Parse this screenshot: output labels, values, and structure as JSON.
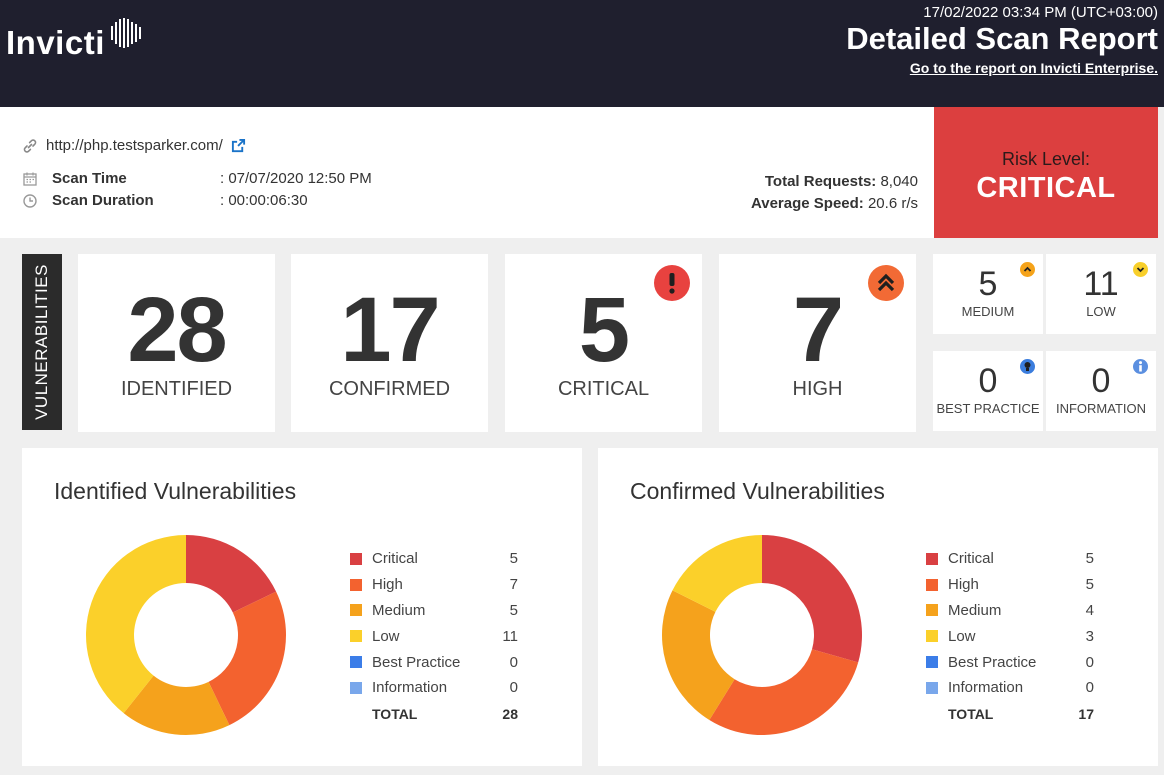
{
  "header": {
    "brand": "Invicti",
    "datetime": "17/02/2022 03:34 PM (UTC+03:00)",
    "title": "Detailed Scan Report",
    "enterprise_link": "Go to the report on Invicti Enterprise."
  },
  "scan": {
    "url": "http://php.testsparker.com/",
    "scan_time_label": "Scan Time",
    "scan_time_value": ": 07/07/2020 12:50 PM",
    "scan_duration_label": "Scan Duration",
    "scan_duration_value": ": 00:00:06:30",
    "total_requests_label": "Total Requests:",
    "total_requests_value": "8,040",
    "average_speed_label": "Average Speed:",
    "average_speed_value": "20.6 r/s"
  },
  "risk": {
    "label": "Risk Level:",
    "value": "CRITICAL",
    "color": "#dc3f3f"
  },
  "vulnerabilities": {
    "tab_label": "VULNERABILITIES",
    "identified": {
      "value": "28",
      "label": "IDENTIFIED"
    },
    "confirmed": {
      "value": "17",
      "label": "CONFIRMED"
    },
    "critical": {
      "value": "5",
      "label": "CRITICAL",
      "icon": "exclamation-icon",
      "color": "#e8423f"
    },
    "high": {
      "value": "7",
      "label": "HIGH",
      "icon": "double-chevron-up-icon",
      "color": "#f26a35"
    },
    "medium": {
      "value": "5",
      "label": "MEDIUM",
      "icon": "chevron-up-icon",
      "color": "#f5a31a"
    },
    "low": {
      "value": "11",
      "label": "LOW",
      "icon": "chevron-down-icon",
      "color": "#f8cf2b"
    },
    "best_practice": {
      "value": "0",
      "label": "BEST PRACTICE",
      "icon": "lightbulb-icon",
      "color": "#3b7ddd"
    },
    "information": {
      "value": "0",
      "label": "INFORMATION",
      "icon": "info-icon",
      "color": "#5b8fe0"
    }
  },
  "colors": {
    "Critical": "#d94042",
    "High": "#f3622f",
    "Medium": "#f5a21c",
    "Low": "#fbd02a",
    "Best Practice": "#3b7de8",
    "Information": "#79a7eb"
  },
  "chart_data": [
    {
      "type": "pie",
      "title": "Identified Vulnerabilities",
      "categories": [
        "Critical",
        "High",
        "Medium",
        "Low",
        "Best Practice",
        "Information"
      ],
      "values": [
        5,
        7,
        5,
        11,
        0,
        0
      ],
      "total_label": "TOTAL",
      "total": 28
    },
    {
      "type": "pie",
      "title": "Confirmed Vulnerabilities",
      "categories": [
        "Critical",
        "High",
        "Medium",
        "Low",
        "Best Practice",
        "Information"
      ],
      "values": [
        5,
        5,
        4,
        3,
        0,
        0
      ],
      "total_label": "TOTAL",
      "total": 17
    }
  ]
}
